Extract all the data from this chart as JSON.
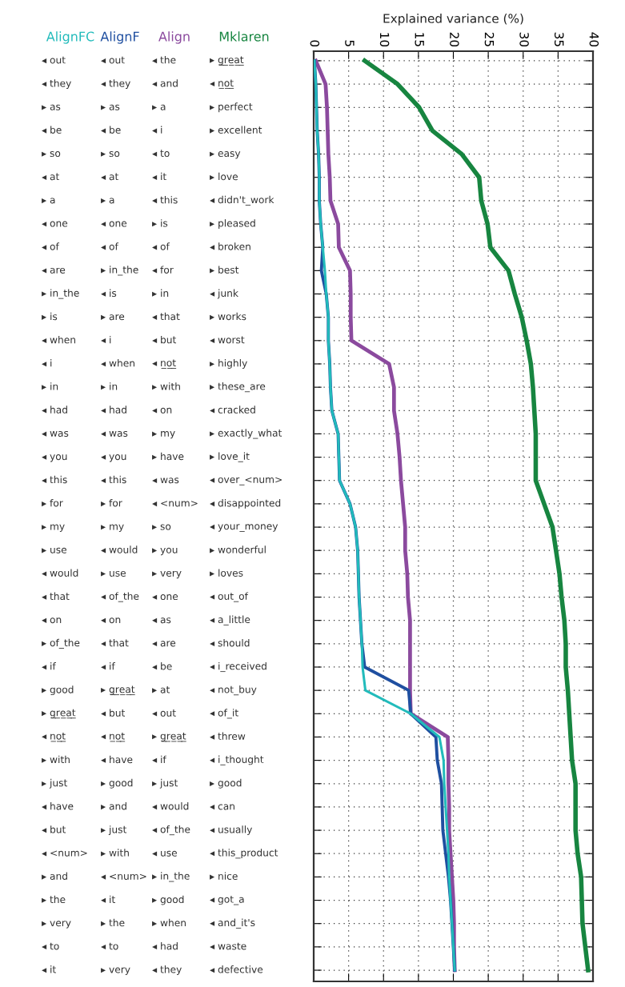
{
  "chart_data": {
    "type": "line",
    "orientation": "horizontal",
    "xlabel": "Explained variance (%)",
    "categories": [
      null,
      null,
      null,
      null,
      null,
      null,
      null,
      null,
      null,
      null,
      null,
      null,
      null,
      null,
      null,
      null,
      null,
      null,
      null,
      null,
      null,
      null,
      null,
      null,
      null,
      null,
      null,
      null,
      null,
      null,
      null,
      null,
      null,
      null,
      null,
      null,
      null,
      null,
      null,
      null
    ],
    "xlim": [
      0,
      40
    ],
    "xticks": [
      0,
      5,
      10,
      15,
      20,
      25,
      30,
      35,
      40
    ],
    "grid": true,
    "legend": false,
    "marker": "none",
    "line_style": "solid",
    "tick_labels": "x",
    "series": [
      {
        "name": "AlignFC",
        "color": "#22bbbb",
        "values": [
          0.1,
          0.3,
          0.4,
          0.5,
          0.7,
          0.8,
          0.8,
          1.0,
          1.3,
          1.6,
          1.8,
          2.1,
          2.1,
          2.3,
          2.4,
          2.6,
          3.5,
          3.6,
          3.7,
          5.2,
          6.0,
          6.3,
          6.4,
          6.5,
          6.7,
          6.9,
          7.0,
          7.4,
          13.9,
          18.0,
          18.6,
          18.7,
          18.9,
          19.1,
          19.3,
          19.4,
          19.6,
          19.8,
          20.0,
          20.2
        ]
      },
      {
        "name": "AlignF",
        "color": "#1f4fa0",
        "values": [
          0.1,
          0.3,
          0.4,
          0.5,
          0.7,
          0.8,
          0.8,
          1.0,
          1.3,
          1.1,
          1.8,
          2.1,
          2.1,
          2.3,
          2.4,
          2.6,
          3.5,
          3.6,
          3.7,
          5.2,
          6.0,
          6.3,
          6.4,
          6.5,
          6.7,
          6.9,
          7.3,
          13.6,
          13.9,
          17.5,
          17.7,
          18.3,
          18.4,
          18.5,
          18.9,
          19.3,
          19.6,
          19.8,
          20.0,
          20.2
        ]
      },
      {
        "name": "Align",
        "color": "#8b4a9e",
        "values": [
          0.3,
          1.7,
          1.9,
          2.0,
          2.1,
          2.3,
          2.4,
          3.5,
          3.6,
          5.2,
          5.3,
          5.3,
          5.4,
          10.8,
          11.5,
          11.5,
          12.0,
          12.3,
          12.5,
          12.8,
          13.1,
          13.1,
          13.4,
          13.5,
          13.8,
          13.8,
          13.8,
          13.8,
          13.9,
          19.2,
          19.3,
          19.3,
          19.4,
          19.4,
          19.6,
          19.8,
          20.0,
          20.1,
          20.1,
          20.2
        ]
      },
      {
        "name": "Mklaren",
        "color": "#178540",
        "values": [
          7.3,
          12.0,
          15.1,
          17.0,
          21.2,
          23.7,
          24.0,
          24.9,
          25.3,
          27.9,
          28.8,
          29.8,
          30.5,
          31.1,
          31.4,
          31.6,
          31.8,
          31.8,
          31.8,
          33.0,
          34.2,
          34.7,
          35.2,
          35.5,
          35.9,
          36.1,
          36.1,
          36.4,
          36.6,
          36.8,
          37.0,
          37.5,
          37.5,
          37.5,
          37.8,
          38.3,
          38.4,
          38.5,
          38.9,
          39.3
        ]
      }
    ],
    "annotations": [
      "◂ out",
      "◂ out",
      "◂ the",
      "▸ g̲r̲e̲a̲t̲",
      "◂ they",
      "◂ they",
      "◂ and",
      "◂ n̲o̲t̲",
      "▸ as",
      "▸ as",
      "▸ a",
      "▸ perfect",
      "◂ be",
      "◂ be",
      "◂ i",
      "▸ excellent",
      "▸ so",
      "▸ so",
      "◂ to",
      "▸ easy",
      "◂ at",
      "◂ at",
      "◂ it",
      "▸ love",
      "▸ a",
      "▸ a",
      "◂ this",
      "◂ didn't_work",
      "◂ one",
      "◂ one",
      "▸ is",
      "▸ pleased",
      "◂ of",
      "◂ of",
      "◂ of",
      "◂ broken",
      "◂ are",
      "▸ in_the",
      "◂ for",
      "▸ best",
      "▸ in_the",
      "◂ is",
      "▸ in",
      "◂ junk",
      "▸ is",
      "▸ are",
      "◂ that",
      "▸ works",
      "◂ when",
      "◂ i",
      "◂ but",
      "◂ worst",
      "◂ i",
      "◂ when",
      "◂ n̲o̲t̲",
      "▸ highly",
      "▸ in",
      "▸ in",
      "▸ with",
      "▸ these_are",
      "◂ had",
      "◂ had",
      "◂ on",
      "◂ cracked",
      "◂ was",
      "◂ was",
      "▸ my",
      "▸ exactly_what",
      "◂ you",
      "◂ you",
      "▸ have",
      "▸ love_it",
      "◂ this",
      "◂ this",
      "◂ was",
      "◂ over_<num>",
      "▸ for",
      "▸ for",
      "◂ <num>",
      "◂ disappointed",
      "▸ my",
      "▸ my",
      "▸ so",
      "◂ your_money",
      "▸ use",
      "◂ would",
      "▸ you",
      "▸ wonderful",
      "◂ would",
      "▸ use",
      "▸ very",
      "▸ loves",
      "◂ that",
      "◂ of_the",
      "◂ one",
      "◂ out_of",
      "◂ on",
      "◂ on",
      "◂ as",
      "◂ a_little",
      "▸ of_the",
      "◂ that",
      "◂ are",
      "◂ should",
      "◂ if",
      "◂ if",
      "◂ be",
      "◂ i_received",
      "▸ good",
      "▸ g̲r̲e̲a̲t̲",
      "▸ at",
      "◂ not_buy",
      "▸ g̲r̲e̲a̲t̲",
      "◂ but",
      "◂ out",
      "◂ of_it",
      "◂ n̲o̲t̲",
      "◂ n̲o̲t̲",
      "▸ g̲r̲e̲a̲t̲",
      "◂ threw",
      "▸ with",
      "◂ have",
      "◂ if",
      "◂ i_thought",
      "▸ just",
      "▸ good",
      "▸ just",
      "▸ good",
      "◂ have",
      "▸ and",
      "◂ would",
      "◂ can",
      "◂ but",
      "▸ just",
      "◂ of_the",
      "◂ usually",
      "◂ <num>",
      "▸ with",
      "◂ use",
      "◂ this_product",
      "▸ and",
      "◂ <num>",
      "▸ in_the",
      "▸ nice",
      "▸ the",
      "◂ it",
      "▸ good",
      "◂ got_a",
      "▸ very",
      "▸ the",
      "▸ when",
      "◂ and_it's",
      "◂ to",
      "◂ to",
      "◂ had",
      "◂ waste",
      "◂ it",
      "▸ very",
      "◂ they",
      "◂ defective"
    ]
  }
}
